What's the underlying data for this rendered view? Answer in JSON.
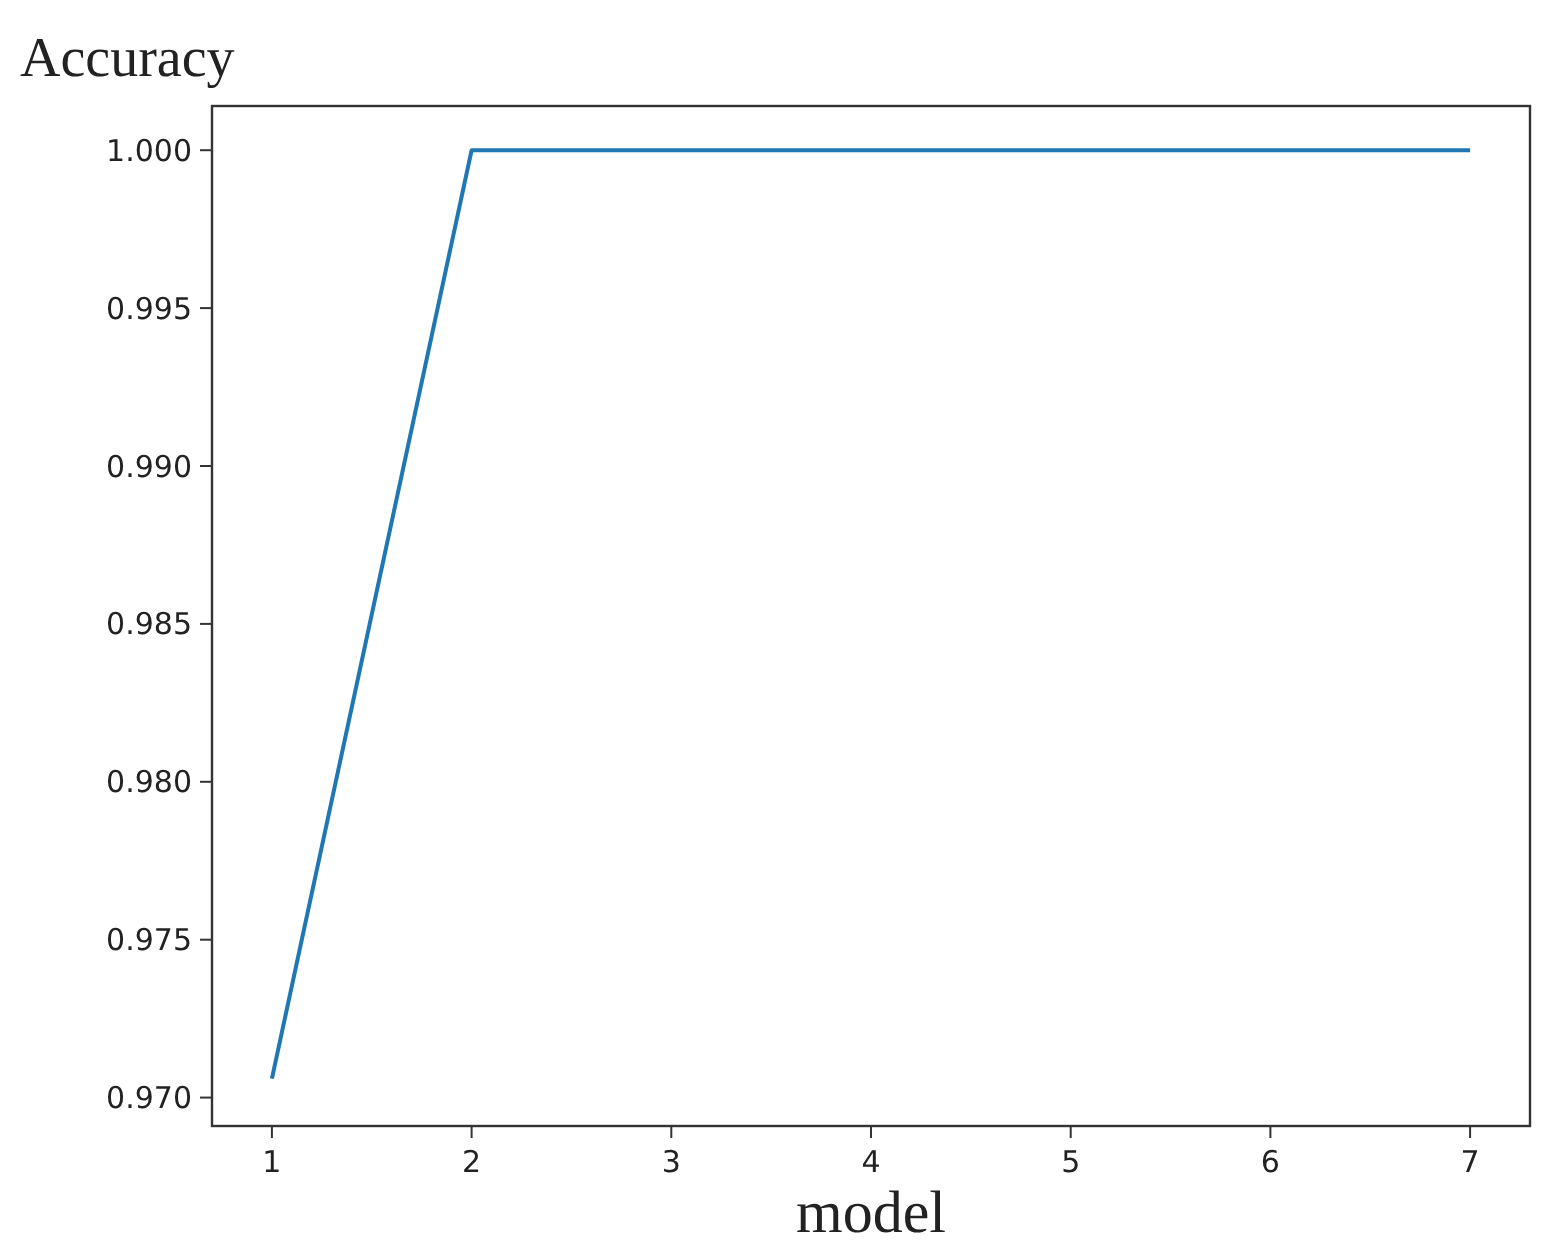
{
  "chart_data": {
    "type": "line",
    "ylabel": "Accuracy",
    "xlabel": "model",
    "x": [
      1,
      2,
      3,
      4,
      5,
      6,
      7
    ],
    "series": [
      {
        "color": "#1f77b4",
        "values": [
          0.9706,
          1.0,
          1.0,
          1.0,
          1.0,
          1.0,
          1.0
        ]
      }
    ],
    "xlim": [
      0.7,
      7.3
    ],
    "xticks": [
      1,
      2,
      3,
      4,
      5,
      6,
      7
    ],
    "ylim": [
      0.9691,
      1.0014
    ],
    "yticks": [
      {
        "value": 0.97,
        "label": "0.970"
      },
      {
        "value": 0.975,
        "label": "0.975"
      },
      {
        "value": 0.98,
        "label": "0.980"
      },
      {
        "value": 0.985,
        "label": "0.985"
      },
      {
        "value": 0.99,
        "label": "0.990"
      },
      {
        "value": 0.995,
        "label": "0.995"
      },
      {
        "value": 1.0,
        "label": "1.000"
      }
    ],
    "grid": false,
    "marker": "none",
    "line_style": "solid"
  }
}
